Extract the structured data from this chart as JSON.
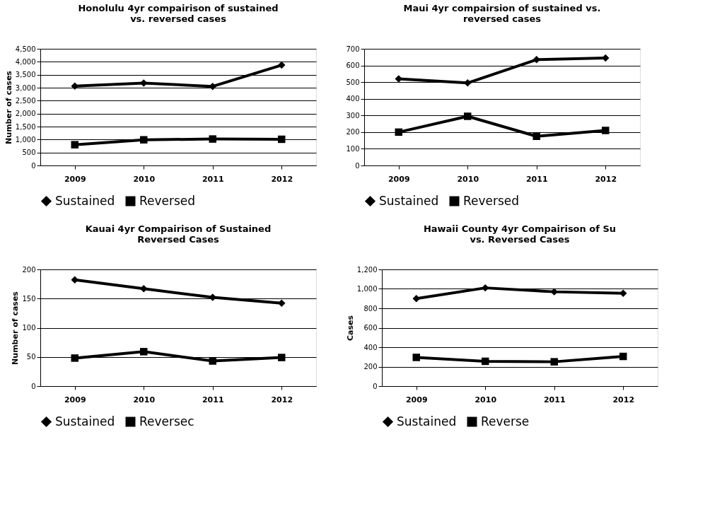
{
  "chart_data": [
    {
      "type": "line",
      "title": [
        "Honolulu 4yr compairison of sustained",
        "vs. reversed cases"
      ],
      "ylabel": "Number of cases",
      "categories": [
        "2009",
        "2010",
        "2011",
        "2012"
      ],
      "ylim": [
        0,
        4500
      ],
      "yticks": [
        0,
        500,
        {
          "value": 1000,
          "label": "1,000"
        },
        {
          "value": 1500,
          "label": "1,500"
        },
        {
          "value": 2000,
          "label": "2,000"
        },
        {
          "value": 2500,
          "label": "2,500"
        },
        {
          "value": 3000,
          "label": "3,000"
        },
        {
          "value": 3500,
          "label": "3,500"
        },
        {
          "value": 4000,
          "label": "4,000"
        },
        {
          "value": 4500,
          "label": "4,500"
        }
      ],
      "grid": "y",
      "legend": "bottom",
      "line_style": "solid",
      "series": [
        {
          "name": "Sustained",
          "color": "#000000",
          "marker": "diamond",
          "values": [
            3060,
            3180,
            3050,
            3870
          ]
        },
        {
          "name": "Reversed",
          "color": "#000000",
          "marker": "square",
          "values": [
            800,
            990,
            1020,
            1010
          ]
        }
      ]
    },
    {
      "type": "line",
      "title": [
        "Maui 4yr compairsion of sustained vs.",
        "reversed cases"
      ],
      "categories": [
        "2009",
        "2010",
        "2011",
        "2012"
      ],
      "ylim": [
        0,
        700
      ],
      "yticks": [
        0,
        100,
        200,
        300,
        400,
        500,
        600,
        700
      ],
      "grid": "y",
      "legend": "bottom",
      "line_style": "solid",
      "series": [
        {
          "name": "Sustained",
          "color": "#000000",
          "marker": "diamond",
          "values": [
            520,
            495,
            635,
            645
          ]
        },
        {
          "name": "Reversed",
          "color": "#000000",
          "marker": "square",
          "values": [
            200,
            295,
            175,
            210
          ]
        }
      ]
    },
    {
      "type": "line",
      "title": [
        "Kauai 4yr Compairison of Sustained",
        "Reversed Cases"
      ],
      "ylabel": "Number of cases",
      "categories": [
        "2009",
        "2010",
        "2011",
        "2012"
      ],
      "ylim": [
        0,
        200
      ],
      "yticks": [
        0,
        50,
        100,
        150,
        200
      ],
      "grid": "y",
      "legend": "bottom",
      "line_style": "solid",
      "series": [
        {
          "name": "Sustained",
          "color": "#000000",
          "marker": "diamond",
          "values": [
            182,
            167,
            152,
            142
          ]
        },
        {
          "name": "Reversec",
          "color": "#000000",
          "marker": "square",
          "values": [
            48,
            59,
            43,
            49
          ]
        }
      ]
    },
    {
      "type": "line",
      "title": [
        "Hawaii County 4yr Compairison of Su",
        "vs. Reversed Cases"
      ],
      "ylabel": "Cases",
      "categories": [
        "2009",
        "2010",
        "2011",
        "2012"
      ],
      "ylim": [
        0,
        1200
      ],
      "yticks": [
        0,
        200,
        400,
        600,
        800,
        {
          "value": 1000,
          "label": "1,000"
        },
        {
          "value": 1200,
          "label": "1,200"
        }
      ],
      "grid": "y",
      "legend": "bottom",
      "line_style": "solid",
      "series": [
        {
          "name": "Sustained",
          "color": "#000000",
          "marker": "diamond",
          "values": [
            900,
            1010,
            970,
            955
          ]
        },
        {
          "name": "Reverse",
          "color": "#000000",
          "marker": "square",
          "values": [
            295,
            255,
            250,
            305
          ]
        }
      ]
    }
  ]
}
